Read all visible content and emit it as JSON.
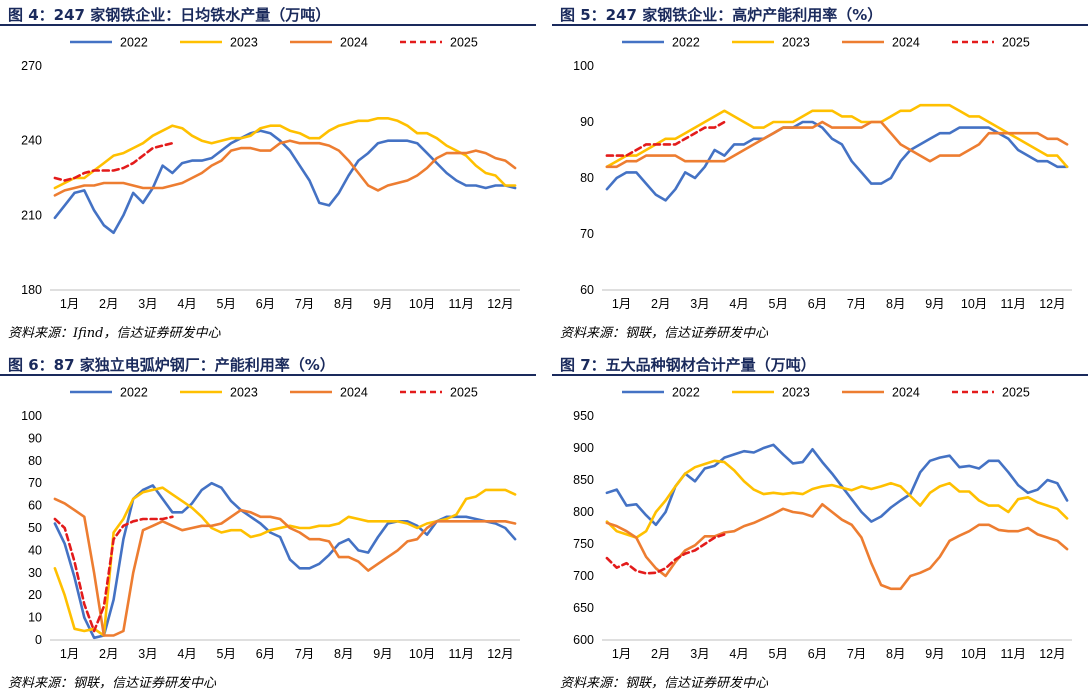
{
  "source_labels": [
    "资料来源：Ifind，信达证券研发中心",
    "资料来源：钢联，信达证券研发中心",
    "资料来源：钢联，信达证券研发中心",
    "资料来源：钢联，信达证券研发中心"
  ],
  "legend_colors": {
    "2022": "#4472c4",
    "2023": "#ffc000",
    "2024": "#ed7d31",
    "2025": "#e31b1b"
  },
  "chart_data": [
    {
      "title": "图 4：247 家钢铁企业：日均铁水产量（万吨）",
      "type": "line",
      "xlabels": [
        "1月",
        "2月",
        "3月",
        "4月",
        "5月",
        "6月",
        "7月",
        "8月",
        "9月",
        "10月",
        "11月",
        "12月"
      ],
      "ylim": [
        180,
        270
      ],
      "yticks": [
        180,
        210,
        240,
        270
      ],
      "series": [
        {
          "name": "2022",
          "values": [
            209,
            214,
            219,
            220,
            212,
            206,
            203,
            210,
            219,
            215,
            221,
            230,
            227,
            231,
            232,
            232,
            233,
            236,
            239,
            241,
            243,
            244,
            243,
            240,
            236,
            230,
            224,
            215,
            214,
            219,
            226,
            232,
            235,
            239,
            240,
            240,
            240,
            239,
            235,
            231,
            227,
            224,
            222,
            222,
            221,
            222,
            222,
            221
          ]
        },
        {
          "name": "2023",
          "values": [
            221,
            223,
            225,
            225,
            228,
            231,
            234,
            235,
            237,
            239,
            242,
            244,
            246,
            245,
            242,
            240,
            239,
            240,
            241,
            241,
            242,
            245,
            246,
            246,
            244,
            243,
            241,
            241,
            244,
            246,
            247,
            248,
            248,
            249,
            249,
            248,
            246,
            243,
            243,
            241,
            238,
            236,
            234,
            230,
            227,
            226,
            222,
            222
          ]
        },
        {
          "name": "2024",
          "values": [
            218,
            220,
            221,
            222,
            222,
            223,
            223,
            223,
            222,
            221,
            221,
            221,
            222,
            223,
            225,
            227,
            230,
            232,
            236,
            237,
            237,
            236,
            236,
            239,
            240,
            239,
            239,
            239,
            238,
            236,
            232,
            227,
            222,
            220,
            222,
            223,
            224,
            226,
            229,
            233,
            235,
            235,
            235,
            236,
            235,
            233,
            232,
            229
          ]
        },
        {
          "name": "2025",
          "values": [
            225,
            224,
            225,
            227,
            228,
            228,
            228,
            229,
            231,
            234,
            237,
            238,
            239
          ]
        }
      ]
    },
    {
      "title": "图 5：247 家钢铁企业：高炉产能利用率（%）",
      "type": "line",
      "xlabels": [
        "1月",
        "2月",
        "3月",
        "4月",
        "5月",
        "6月",
        "7月",
        "8月",
        "9月",
        "10月",
        "11月",
        "12月"
      ],
      "ylim": [
        60,
        100
      ],
      "yticks": [
        60,
        70,
        80,
        90,
        100
      ],
      "series": [
        {
          "name": "2022",
          "values": [
            78,
            80,
            81,
            81,
            79,
            77,
            76,
            78,
            81,
            80,
            82,
            85,
            84,
            86,
            86,
            87,
            87,
            88,
            89,
            89,
            90,
            90,
            89,
            87,
            86,
            83,
            81,
            79,
            79,
            80,
            83,
            85,
            86,
            87,
            88,
            88,
            89,
            89,
            89,
            89,
            88,
            87,
            85,
            84,
            83,
            83,
            82,
            82
          ]
        },
        {
          "name": "2023",
          "values": [
            82,
            83,
            84,
            84,
            85,
            86,
            87,
            87,
            88,
            89,
            90,
            91,
            92,
            91,
            90,
            89,
            89,
            90,
            90,
            90,
            91,
            92,
            92,
            92,
            91,
            91,
            90,
            90,
            90,
            91,
            92,
            92,
            93,
            93,
            93,
            93,
            92,
            91,
            91,
            90,
            89,
            88,
            87,
            86,
            85,
            84,
            84,
            82
          ]
        },
        {
          "name": "2024",
          "values": [
            82,
            82,
            83,
            83,
            84,
            84,
            84,
            84,
            83,
            83,
            83,
            83,
            83,
            84,
            85,
            86,
            87,
            88,
            89,
            89,
            89,
            89,
            90,
            89,
            89,
            89,
            89,
            90,
            90,
            88,
            86,
            85,
            84,
            83,
            84,
            84,
            84,
            85,
            86,
            88,
            88,
            88,
            88,
            88,
            88,
            87,
            87,
            86
          ]
        },
        {
          "name": "2025",
          "values": [
            84,
            84,
            84,
            85,
            86,
            86,
            86,
            86,
            87,
            88,
            89,
            89,
            90
          ]
        }
      ]
    },
    {
      "title": "图 6：87 家独立电弧炉钢厂：产能利用率（%）",
      "type": "line",
      "xlabels": [
        "1月",
        "2月",
        "3月",
        "4月",
        "5月",
        "6月",
        "7月",
        "8月",
        "9月",
        "10月",
        "11月",
        "12月"
      ],
      "ylim": [
        0,
        100
      ],
      "yticks": [
        0,
        10,
        20,
        30,
        40,
        50,
        60,
        70,
        80,
        90,
        100
      ],
      "series": [
        {
          "name": "2022",
          "values": [
            52,
            43,
            28,
            10,
            1,
            2,
            18,
            45,
            63,
            67,
            69,
            63,
            57,
            57,
            61,
            67,
            70,
            68,
            62,
            58,
            55,
            52,
            48,
            46,
            36,
            32,
            32,
            34,
            38,
            43,
            45,
            40,
            39,
            46,
            52,
            53,
            53,
            51,
            47,
            53,
            55,
            55,
            55,
            54,
            53,
            52,
            50,
            45
          ]
        },
        {
          "name": "2023",
          "values": [
            32,
            20,
            5,
            4,
            5,
            2,
            48,
            54,
            63,
            66,
            67,
            68,
            65,
            62,
            59,
            55,
            50,
            48,
            49,
            49,
            46,
            47,
            49,
            50,
            51,
            50,
            50,
            51,
            51,
            52,
            55,
            54,
            53,
            53,
            53,
            53,
            52,
            50,
            52,
            53,
            54,
            56,
            63,
            64,
            67,
            67,
            67,
            65
          ]
        },
        {
          "name": "2024",
          "values": [
            63,
            61,
            58,
            55,
            30,
            2,
            2,
            4,
            30,
            49,
            51,
            53,
            51,
            49,
            50,
            51,
            51,
            52,
            55,
            58,
            57,
            55,
            55,
            54,
            50,
            48,
            45,
            45,
            44,
            37,
            37,
            35,
            31,
            34,
            37,
            40,
            44,
            45,
            50,
            53,
            53,
            53,
            53,
            53,
            53,
            53,
            53,
            52
          ]
        },
        {
          "name": "2025",
          "values": [
            54,
            50,
            35,
            16,
            4,
            15,
            45,
            51,
            53,
            54,
            54,
            54,
            55
          ]
        }
      ]
    },
    {
      "title": "图 7：五大品种钢材合计产量（万吨）",
      "type": "line",
      "xlabels": [
        "1月",
        "2月",
        "3月",
        "4月",
        "5月",
        "6月",
        "7月",
        "8月",
        "9月",
        "10月",
        "11月",
        "12月"
      ],
      "ylim": [
        600,
        950
      ],
      "yticks": [
        600,
        650,
        700,
        750,
        800,
        850,
        900,
        950
      ],
      "series": [
        {
          "name": "2022",
          "values": [
            830,
            835,
            810,
            812,
            795,
            780,
            800,
            840,
            860,
            848,
            868,
            872,
            885,
            890,
            895,
            893,
            900,
            905,
            890,
            876,
            878,
            898,
            878,
            860,
            840,
            820,
            800,
            785,
            793,
            807,
            818,
            828,
            862,
            880,
            885,
            888,
            870,
            872,
            868,
            880,
            880,
            862,
            842,
            830,
            835,
            850,
            845,
            818
          ]
        },
        {
          "name": "2023",
          "values": [
            785,
            770,
            765,
            760,
            770,
            800,
            818,
            840,
            860,
            870,
            875,
            880,
            878,
            865,
            848,
            835,
            828,
            830,
            828,
            830,
            828,
            836,
            840,
            842,
            838,
            834,
            840,
            836,
            840,
            845,
            840,
            825,
            810,
            830,
            840,
            845,
            832,
            832,
            818,
            810,
            810,
            800,
            820,
            823,
            815,
            810,
            805,
            790
          ]
        },
        {
          "name": "2024",
          "values": [
            783,
            778,
            770,
            760,
            730,
            712,
            700,
            722,
            740,
            748,
            762,
            762,
            768,
            770,
            778,
            783,
            790,
            797,
            805,
            800,
            798,
            793,
            812,
            800,
            788,
            780,
            760,
            720,
            686,
            680,
            680,
            700,
            705,
            712,
            730,
            755,
            763,
            770,
            780,
            780,
            772,
            770,
            770,
            775,
            765,
            760,
            755,
            742
          ]
        },
        {
          "name": "2025",
          "values": [
            728,
            713,
            720,
            708,
            704,
            705,
            712,
            726,
            735,
            740,
            750,
            760,
            765
          ]
        }
      ]
    }
  ]
}
